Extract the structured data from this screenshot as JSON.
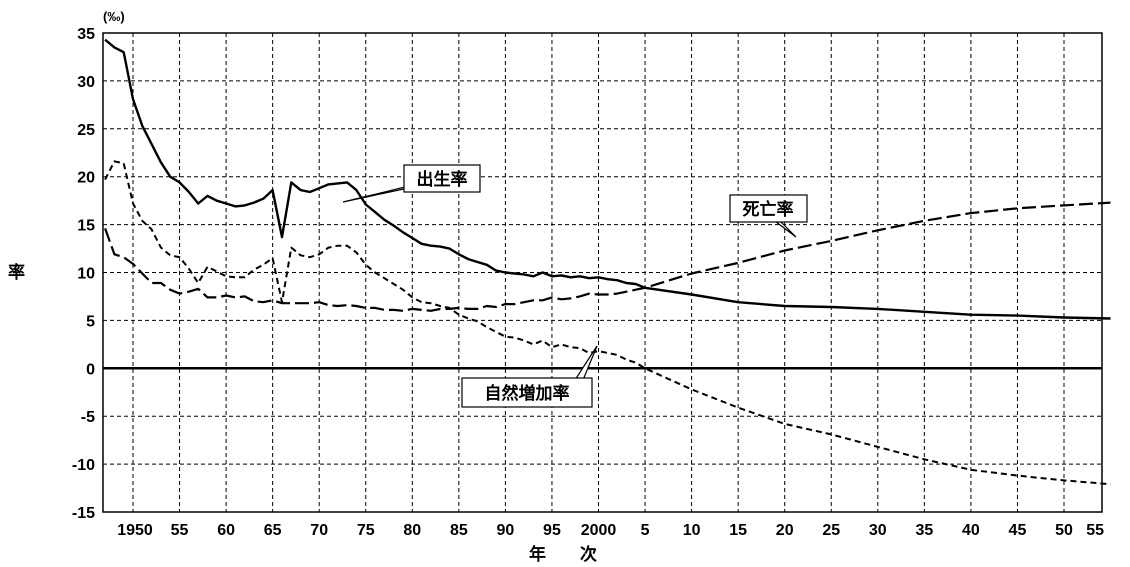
{
  "chart_data": {
    "type": "line",
    "unit_label": "(‰)",
    "ylabel": "率",
    "xlabel": "年　　次",
    "ylim": [
      -15,
      35
    ],
    "yticks": [
      35,
      30,
      25,
      20,
      15,
      10,
      5,
      0,
      -5,
      -10,
      -15
    ],
    "xlim": [
      1947,
      2055
    ],
    "xtick_values": [
      1950,
      1955,
      1960,
      1965,
      1970,
      1975,
      1980,
      1985,
      1990,
      1995,
      2000,
      2005,
      2010,
      2015,
      2020,
      2025,
      2030,
      2035,
      2040,
      2045,
      2050,
      2055
    ],
    "xtick_labels": [
      "1950",
      "55",
      "60",
      "65",
      "70",
      "75",
      "80",
      "85",
      "90",
      "95",
      "2000",
      "5",
      "10",
      "15",
      "20",
      "25",
      "30",
      "35",
      "40",
      "45",
      "50",
      "55"
    ],
    "grid": true,
    "series": [
      {
        "name": "出生率",
        "style": "solid",
        "x": [
          1947,
          1948,
          1949,
          1950,
          1951,
          1952,
          1953,
          1954,
          1955,
          1956,
          1957,
          1958,
          1959,
          1960,
          1961,
          1962,
          1963,
          1964,
          1965,
          1966,
          1967,
          1968,
          1969,
          1970,
          1971,
          1972,
          1973,
          1974,
          1975,
          1976,
          1977,
          1978,
          1979,
          1980,
          1981,
          1982,
          1983,
          1984,
          1985,
          1986,
          1987,
          1988,
          1989,
          1990,
          1991,
          1992,
          1993,
          1994,
          1995,
          1996,
          1997,
          1998,
          1999,
          2000,
          2001,
          2002,
          2003,
          2004,
          2005,
          2010,
          2015,
          2020,
          2025,
          2030,
          2035,
          2040,
          2045,
          2050,
          2055
        ],
        "values": [
          34.3,
          33.5,
          33.0,
          28.1,
          25.3,
          23.4,
          21.5,
          20.0,
          19.4,
          18.4,
          17.2,
          18.0,
          17.5,
          17.2,
          16.9,
          17.0,
          17.3,
          17.7,
          18.6,
          13.7,
          19.4,
          18.6,
          18.4,
          18.8,
          19.2,
          19.3,
          19.4,
          18.6,
          17.1,
          16.3,
          15.5,
          14.9,
          14.2,
          13.6,
          13.0,
          12.8,
          12.7,
          12.5,
          11.9,
          11.4,
          11.1,
          10.8,
          10.2,
          10.0,
          9.9,
          9.8,
          9.6,
          10.0,
          9.6,
          9.7,
          9.5,
          9.6,
          9.4,
          9.5,
          9.3,
          9.2,
          8.9,
          8.8,
          8.4,
          7.7,
          6.9,
          6.5,
          6.4,
          6.2,
          5.9,
          5.6,
          5.5,
          5.3,
          5.2
        ]
      },
      {
        "name": "死亡率",
        "style": "long-dash",
        "x": [
          1947,
          1948,
          1949,
          1950,
          1951,
          1952,
          1953,
          1954,
          1955,
          1956,
          1957,
          1958,
          1959,
          1960,
          1961,
          1962,
          1963,
          1964,
          1965,
          1966,
          1967,
          1968,
          1969,
          1970,
          1971,
          1972,
          1973,
          1974,
          1975,
          1976,
          1977,
          1978,
          1979,
          1980,
          1981,
          1982,
          1983,
          1984,
          1985,
          1986,
          1987,
          1988,
          1989,
          1990,
          1991,
          1992,
          1993,
          1994,
          1995,
          1996,
          1997,
          1998,
          1999,
          2000,
          2001,
          2002,
          2003,
          2004,
          2005,
          2010,
          2015,
          2020,
          2025,
          2030,
          2035,
          2040,
          2045,
          2050,
          2055
        ],
        "values": [
          14.6,
          11.9,
          11.6,
          10.9,
          9.9,
          8.9,
          8.9,
          8.2,
          7.8,
          8.0,
          8.3,
          7.4,
          7.4,
          7.6,
          7.4,
          7.5,
          7.0,
          6.9,
          7.1,
          6.8,
          6.8,
          6.8,
          6.8,
          6.9,
          6.6,
          6.5,
          6.6,
          6.5,
          6.3,
          6.3,
          6.1,
          6.1,
          6.0,
          6.2,
          6.1,
          6.0,
          6.2,
          6.2,
          6.3,
          6.2,
          6.2,
          6.5,
          6.4,
          6.7,
          6.7,
          6.9,
          7.1,
          7.1,
          7.4,
          7.2,
          7.3,
          7.5,
          7.8,
          7.7,
          7.7,
          7.8,
          8.0,
          8.2,
          8.4,
          9.9,
          11.0,
          12.3,
          13.3,
          14.4,
          15.4,
          16.2,
          16.7,
          17.0,
          17.3
        ]
      },
      {
        "name": "自然増加率",
        "style": "short-dash",
        "x": [
          1947,
          1948,
          1949,
          1950,
          1951,
          1952,
          1953,
          1954,
          1955,
          1956,
          1957,
          1958,
          1959,
          1960,
          1961,
          1962,
          1963,
          1964,
          1965,
          1966,
          1967,
          1968,
          1969,
          1970,
          1971,
          1972,
          1973,
          1974,
          1975,
          1976,
          1977,
          1978,
          1979,
          1980,
          1981,
          1982,
          1983,
          1984,
          1985,
          1986,
          1987,
          1988,
          1989,
          1990,
          1991,
          1992,
          1993,
          1994,
          1995,
          1996,
          1997,
          1998,
          1999,
          2000,
          2001,
          2002,
          2003,
          2004,
          2005,
          2010,
          2015,
          2020,
          2025,
          2030,
          2035,
          2040,
          2045,
          2050,
          2055
        ],
        "values": [
          19.7,
          21.6,
          21.4,
          17.2,
          15.4,
          14.5,
          12.6,
          11.8,
          11.6,
          10.4,
          8.9,
          10.6,
          10.1,
          9.6,
          9.5,
          9.5,
          10.3,
          10.8,
          11.5,
          6.9,
          12.6,
          11.8,
          11.6,
          11.9,
          12.6,
          12.8,
          12.8,
          12.1,
          10.8,
          10.0,
          9.4,
          8.8,
          8.2,
          7.4,
          6.9,
          6.8,
          6.5,
          6.3,
          5.6,
          5.2,
          4.9,
          4.3,
          3.8,
          3.3,
          3.2,
          2.9,
          2.5,
          2.9,
          2.2,
          2.5,
          2.2,
          2.1,
          1.6,
          1.8,
          1.6,
          1.4,
          0.9,
          0.6,
          0.0,
          -2.2,
          -4.1,
          -5.8,
          -6.9,
          -8.2,
          -9.5,
          -10.6,
          -11.2,
          -11.7,
          -12.1
        ]
      }
    ]
  }
}
